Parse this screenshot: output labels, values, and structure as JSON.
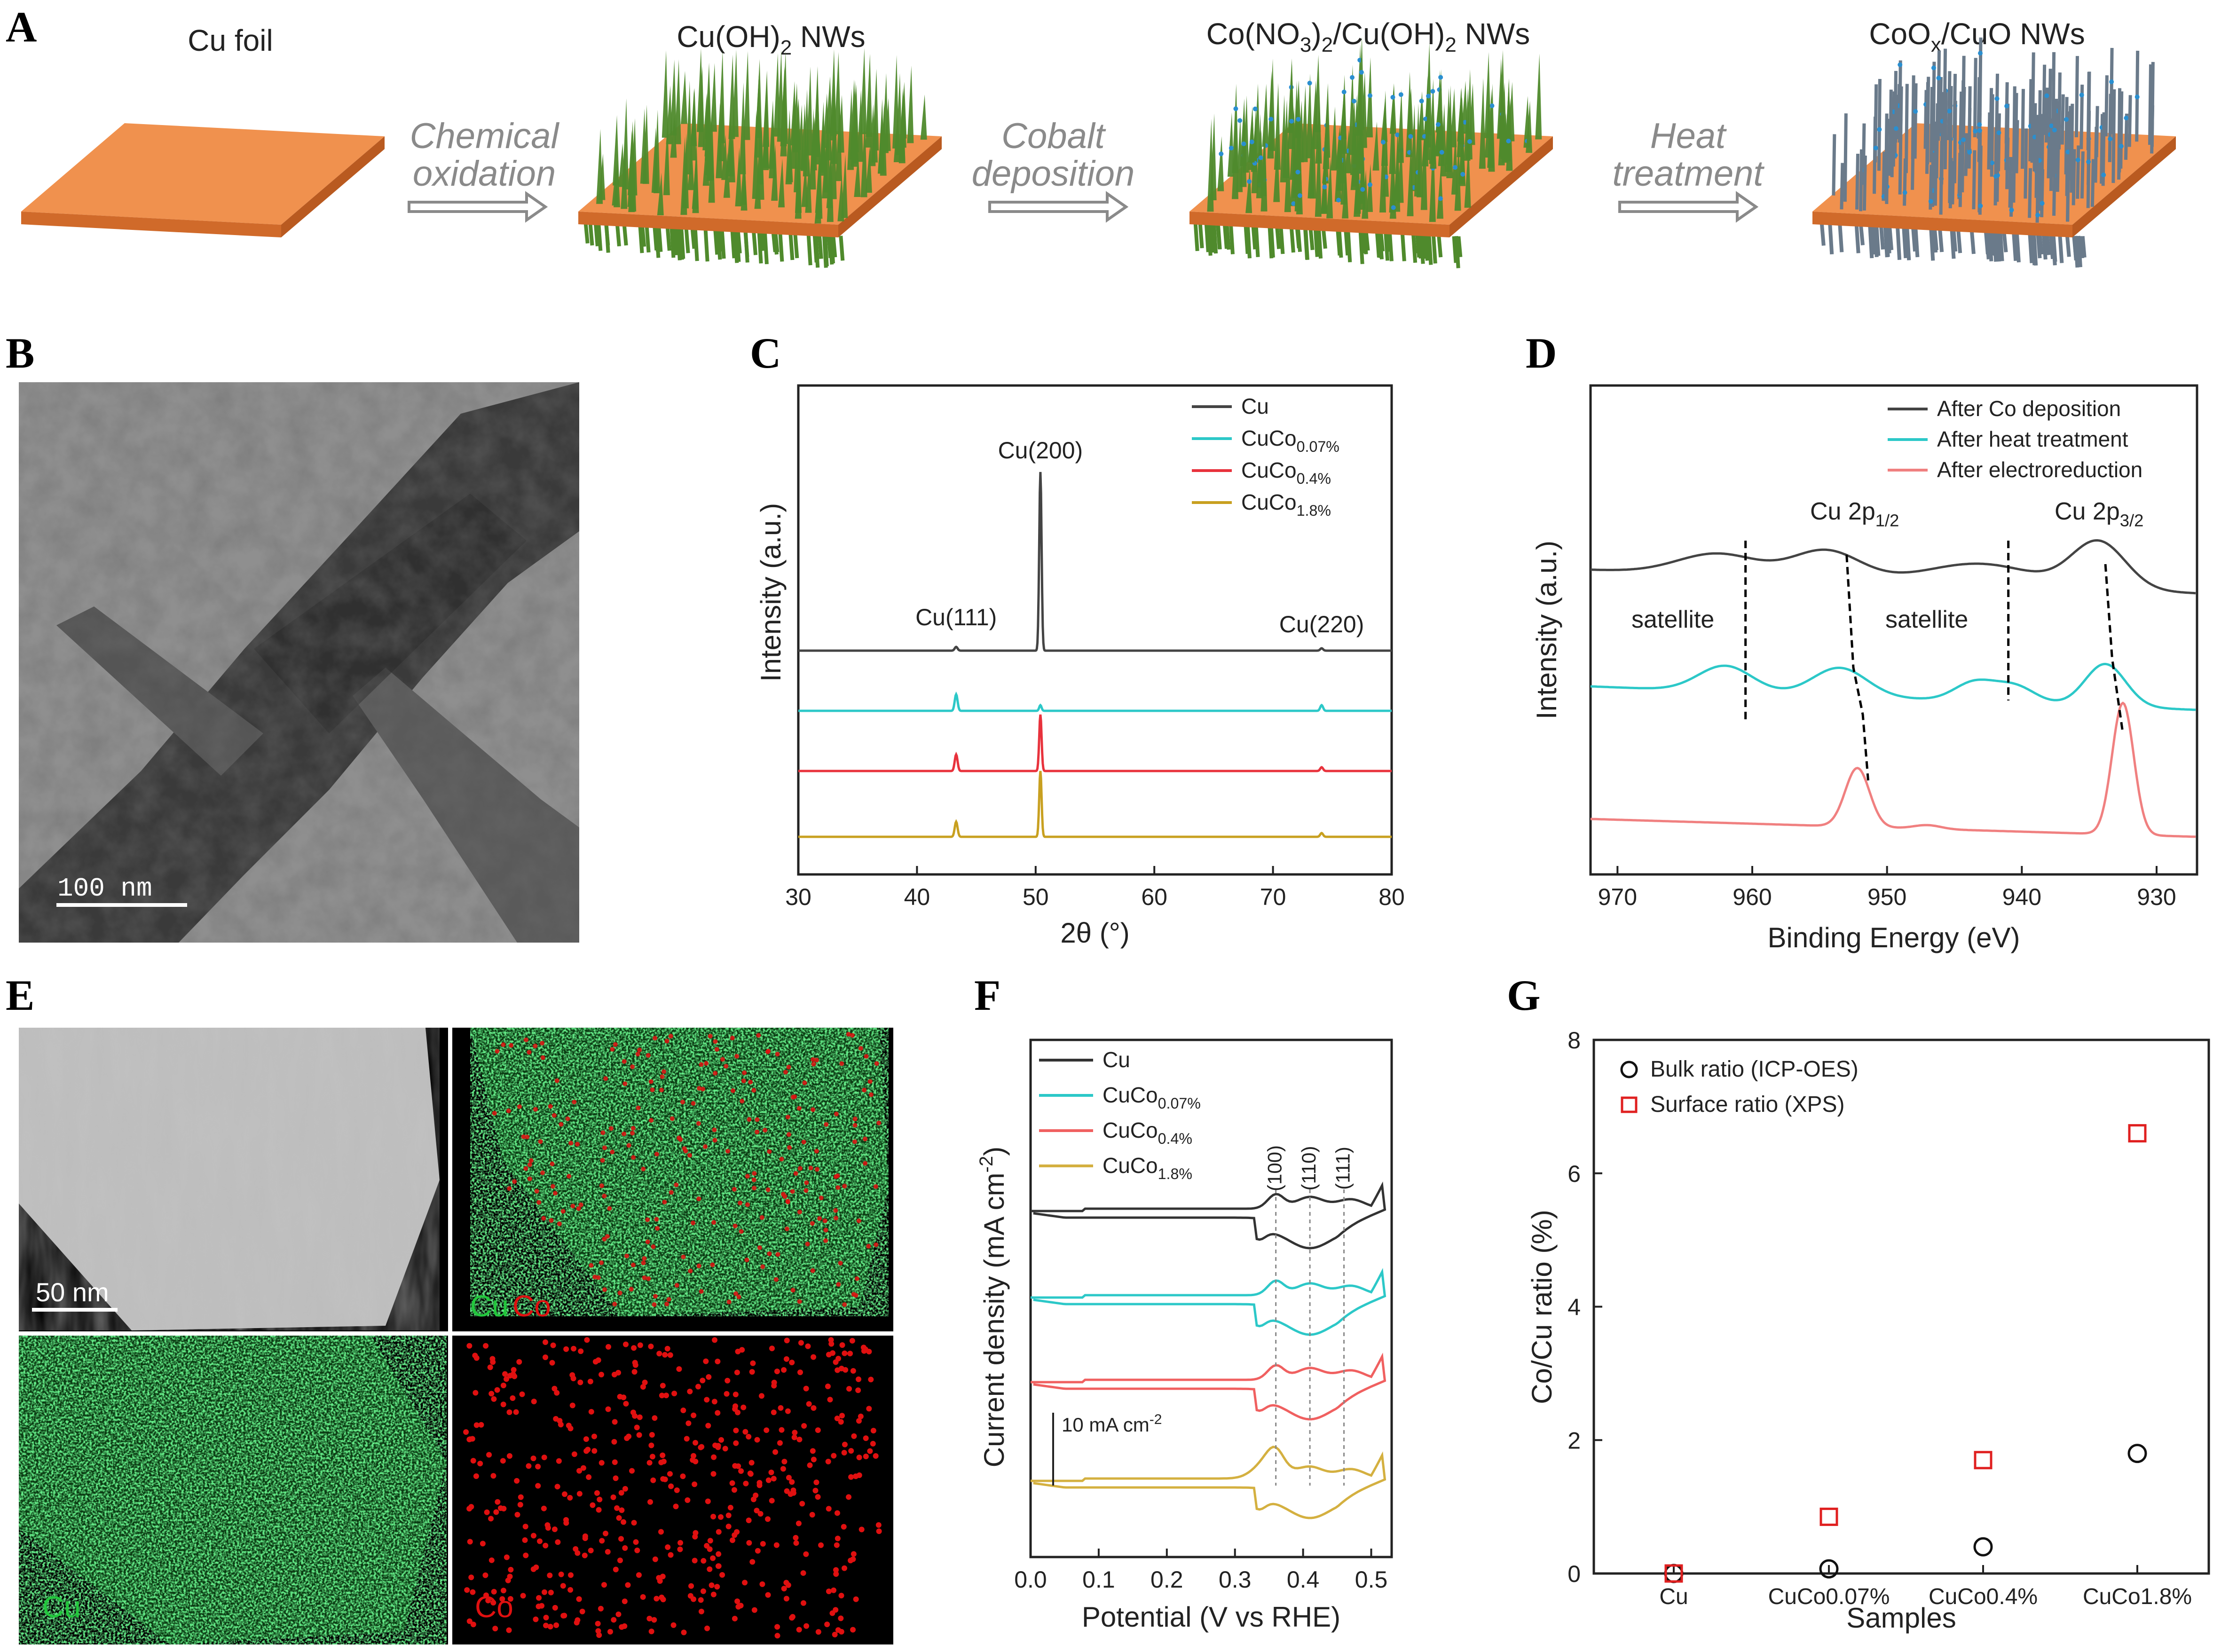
{
  "panel_labels": {
    "A": "A",
    "B": "B",
    "C": "C",
    "D": "D",
    "E": "E",
    "F": "F",
    "G": "G"
  },
  "panel_a": {
    "stages": [
      {
        "label": "Cu foil"
      },
      {
        "label": "Cu(OH)",
        "sub": "2",
        "suffix": " NWs"
      },
      {
        "label": "Co(NO",
        "sub": "3",
        "mid": ")",
        "sub2": "2",
        "tail": "/Cu(OH)",
        "sub3": "2",
        "suffix": " NWs"
      },
      {
        "label": "CoO",
        "sub": "x",
        "suffix": "/CuO NWs"
      }
    ],
    "steps": [
      {
        "line1": "Chemical",
        "line2": "oxidation"
      },
      {
        "line1": "Cobalt",
        "line2": "deposition"
      },
      {
        "line1": "Heat",
        "line2": "treatment"
      }
    ],
    "colors": {
      "foil_top": "#f0914e",
      "foil_side": "#d06a2a",
      "wire_green": "#4f8a2c",
      "wire_grey": "#6a7a8a",
      "co_dot": "#2a8fd0"
    }
  },
  "panel_b": {
    "scale_bar": "100 nm"
  },
  "panel_e": {
    "scale_bar": "50 nm",
    "map_labels": {
      "cuco_cu": "Cu",
      "cuco_co": "Co",
      "cu": "Cu",
      "co": "Co"
    },
    "colors": {
      "cu": "#22c83c",
      "co": "#e01010"
    }
  },
  "chart_data": [
    {
      "panel": "C",
      "type": "line",
      "xlabel": "2θ (°)",
      "ylabel": "Intensity (a.u.)",
      "xlim": [
        30,
        80
      ],
      "xticks": [
        30,
        40,
        50,
        60,
        70,
        80
      ],
      "series": [
        {
          "name": "Cu",
          "sub": "",
          "color": "#444444"
        },
        {
          "name": "CuCo",
          "sub": "0.07%",
          "color": "#2cc8c8"
        },
        {
          "name": "CuCo",
          "sub": "0.4%",
          "color": "#e8323c"
        },
        {
          "name": "CuCo",
          "sub": "1.8%",
          "color": "#c8a020"
        }
      ],
      "peaks": [
        {
          "x": 43.3,
          "label": "Cu(111)"
        },
        {
          "x": 50.4,
          "label": "Cu(200)"
        },
        {
          "x": 74.1,
          "label": "Cu(220)"
        }
      ]
    },
    {
      "panel": "D",
      "type": "line",
      "xlabel": "Binding Energy (eV)",
      "ylabel": "Intensity (a.u.)",
      "xlim": [
        972,
        927
      ],
      "xticks": [
        970,
        960,
        950,
        940,
        930
      ],
      "series": [
        {
          "name": "After Co deposition",
          "color": "#444444"
        },
        {
          "name": "After heat treatment",
          "color": "#2cc8c8"
        },
        {
          "name": "After electroreduction",
          "color": "#f08080"
        }
      ],
      "annotations": [
        "Cu 2p",
        "1/2",
        "Cu 2p",
        "3/2",
        "satellite",
        "satellite"
      ]
    },
    {
      "panel": "F",
      "type": "line",
      "xlabel": "Potential (V vs RHE)",
      "ylabel": "Current density (mA cm",
      "ylabel_sup": "-2",
      "ylabel_tail": ")",
      "xlim": [
        0.0,
        0.53
      ],
      "xticks": [
        "0.0",
        "0.1",
        "0.2",
        "0.3",
        "0.4",
        "0.5"
      ],
      "series": [
        {
          "name": "Cu",
          "sub": "",
          "color": "#333333"
        },
        {
          "name": "CuCo",
          "sub": "0.07%",
          "color": "#2cc8c8"
        },
        {
          "name": "CuCo",
          "sub": "0.4%",
          "color": "#f06060"
        },
        {
          "name": "CuCo",
          "sub": "1.8%",
          "color": "#d4b040"
        }
      ],
      "facets": [
        {
          "label": "(100)",
          "x": 0.36
        },
        {
          "label": "(110)",
          "x": 0.41
        },
        {
          "label": "(111)",
          "x": 0.46
        }
      ],
      "scale_bar": {
        "text": "10 mA cm",
        "sup": "-2"
      }
    },
    {
      "panel": "G",
      "type": "scatter",
      "xlabel": "Samples",
      "ylabel": "Co/Cu ratio (%)",
      "categories": [
        "Cu",
        "CuCo0.07%",
        "CuCo0.4%",
        "CuCo1.8%"
      ],
      "ylim": [
        0,
        8
      ],
      "yticks": [
        0,
        2,
        4,
        6,
        8
      ],
      "series": [
        {
          "name": "Bulk ratio (ICP-OES)",
          "marker": "circle",
          "color": "#111111",
          "values": [
            0.0,
            0.07,
            0.4,
            1.8
          ]
        },
        {
          "name": "Surface ratio (XPS)",
          "marker": "square",
          "color": "#e02020",
          "values": [
            0.0,
            0.85,
            1.7,
            6.6
          ]
        }
      ]
    }
  ]
}
